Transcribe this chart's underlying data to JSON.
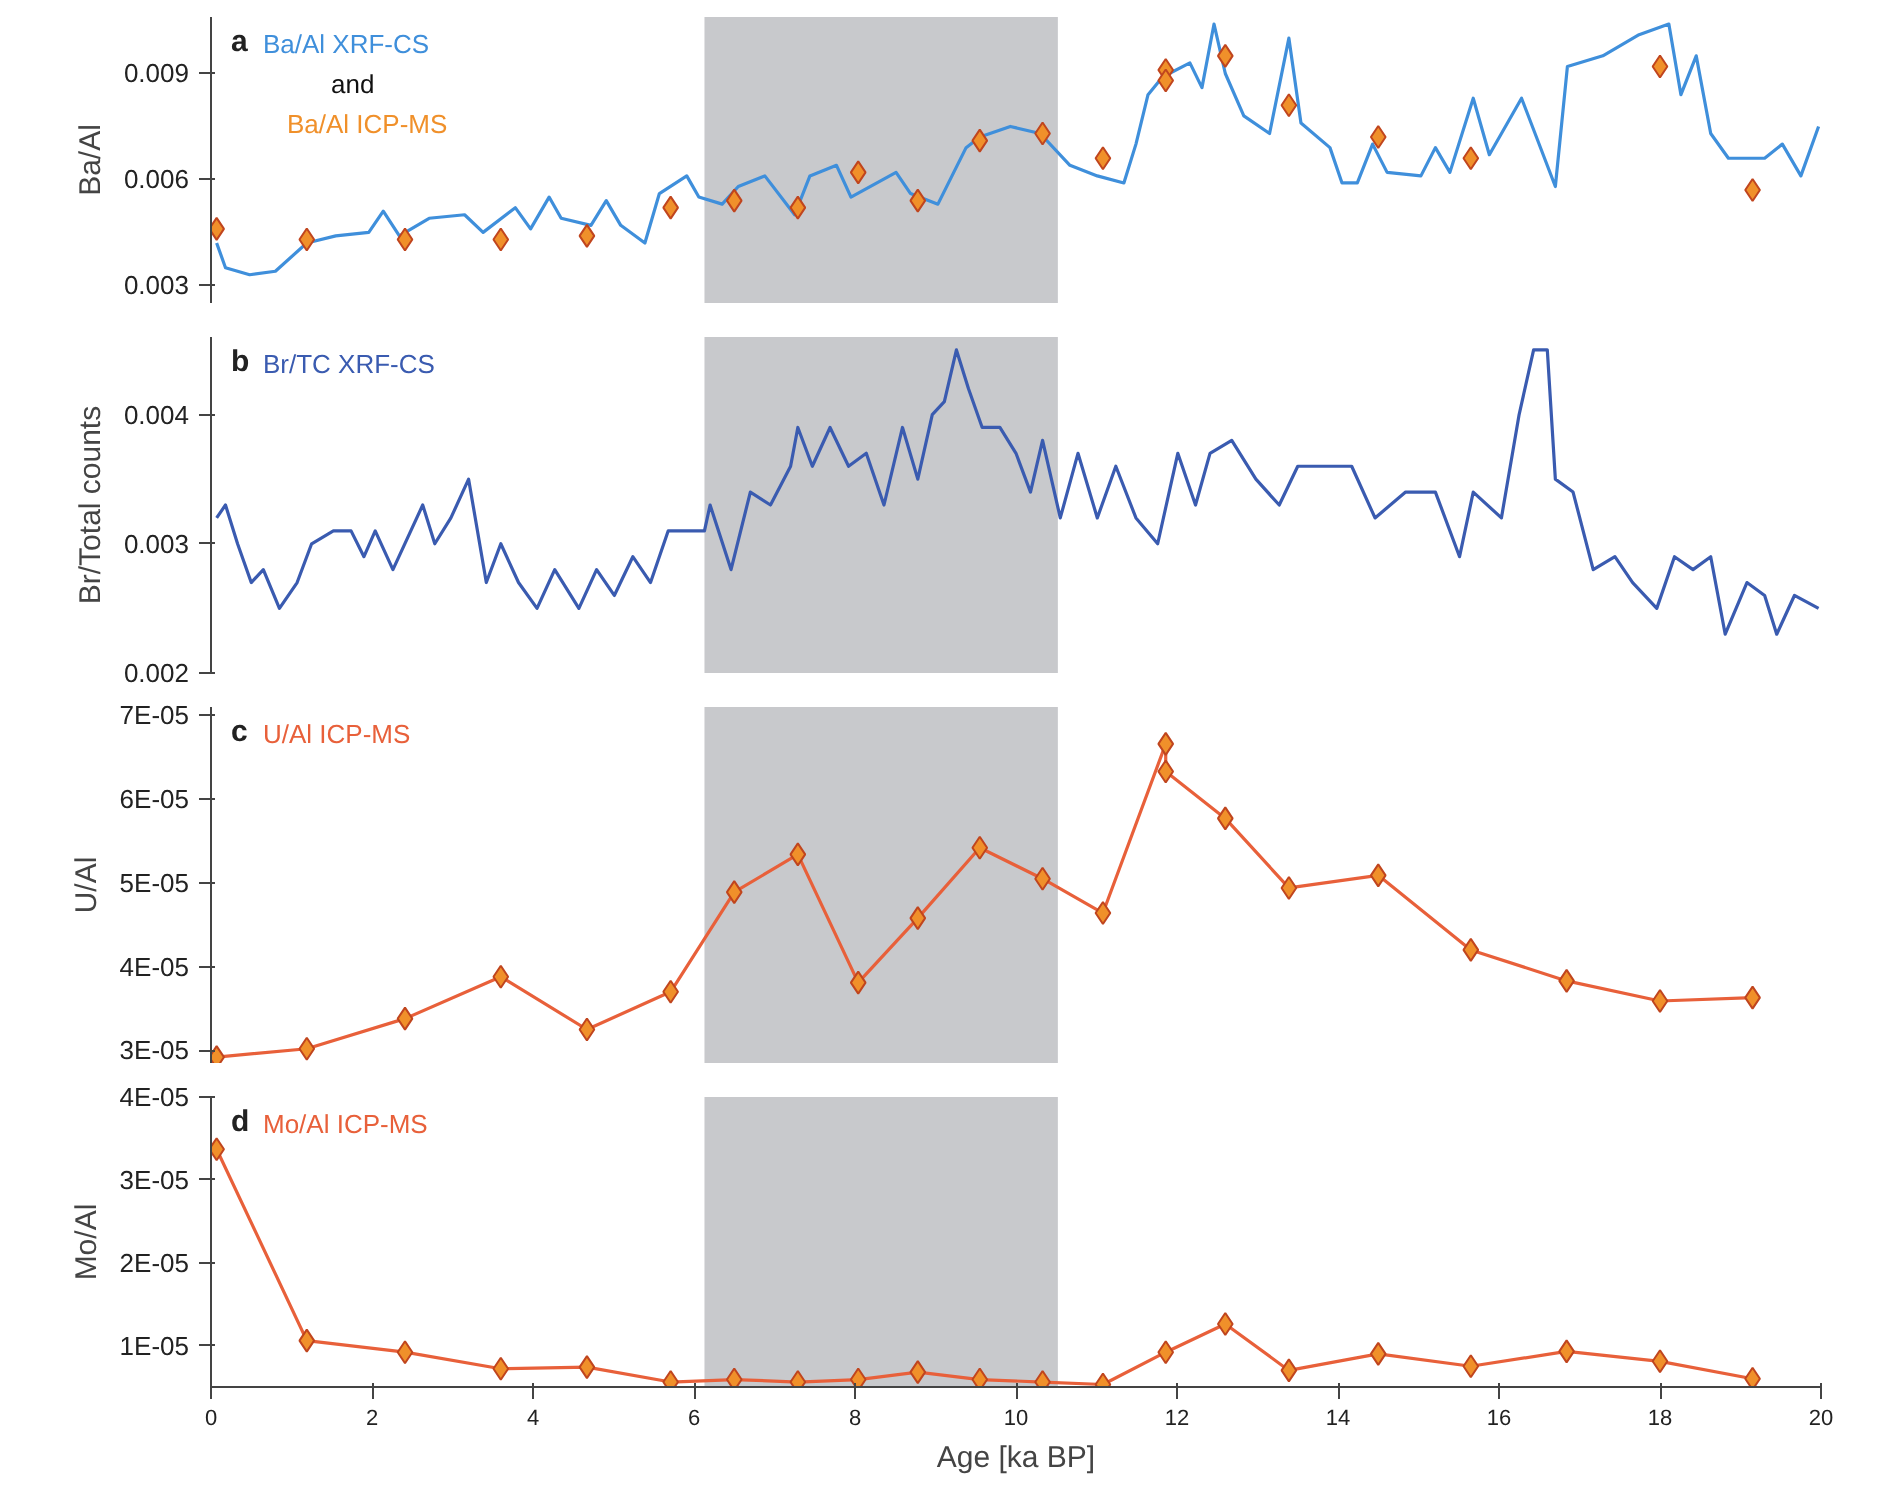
{
  "chart_data": [
    {
      "type": "line",
      "title": "a",
      "ylabel": "Ba/Al",
      "xlim": [
        0,
        20
      ],
      "ylim": [
        0.0025,
        0.0106
      ],
      "yticks": [
        0.003,
        0.006,
        0.009
      ],
      "tick_labels": "y",
      "annotations": [
        "and"
      ],
      "bands": [
        {
          "axis": "x",
          "from": 6.13,
          "to": 10.52,
          "color": "#c8c9cc"
        }
      ],
      "series": [
        {
          "name": "Ba/Al XRF-CS",
          "color": "#3f8fdb",
          "x": [
            0.07,
            0.18,
            0.48,
            0.8,
            1.19,
            1.55,
            1.96,
            2.14,
            2.34,
            2.71,
            3.15,
            3.38,
            3.78,
            3.97,
            4.2,
            4.35,
            4.72,
            4.91,
            5.09,
            5.39,
            5.57,
            5.91,
            6.06,
            6.35,
            6.55,
            6.88,
            7.25,
            7.44,
            7.77,
            7.95,
            8.51,
            8.69,
            9.03,
            9.38,
            9.55,
            9.93,
            10.3,
            10.67,
            11.01,
            11.34,
            11.49,
            11.64,
            11.82,
            12.16,
            12.31,
            12.46,
            12.6,
            12.83,
            13.15,
            13.39,
            13.54,
            13.9,
            14.05,
            14.24,
            14.43,
            14.61,
            15.03,
            15.21,
            15.39,
            15.68,
            15.88,
            16.28,
            16.7,
            16.85,
            17.29,
            17.74,
            18.11,
            18.26,
            18.45,
            18.63,
            18.85,
            19.3,
            19.52,
            19.75,
            19.97
          ],
          "values": [
            0.0042,
            0.0035,
            0.0033,
            0.0034,
            0.0042,
            0.0044,
            0.0045,
            0.0051,
            0.0044,
            0.0049,
            0.005,
            0.0045,
            0.0052,
            0.0046,
            0.0055,
            0.0049,
            0.0047,
            0.0054,
            0.0047,
            0.0042,
            0.0056,
            0.0061,
            0.0055,
            0.0053,
            0.0058,
            0.0061,
            0.005,
            0.0061,
            0.0064,
            0.0055,
            0.0062,
            0.0056,
            0.0053,
            0.0069,
            0.0072,
            0.0075,
            0.0073,
            0.0064,
            0.0061,
            0.0059,
            0.007,
            0.0084,
            0.0089,
            0.0093,
            0.0086,
            0.0104,
            0.009,
            0.0078,
            0.0073,
            0.01,
            0.0076,
            0.0069,
            0.0059,
            0.0059,
            0.007,
            0.0062,
            0.0061,
            0.0069,
            0.0062,
            0.0083,
            0.0067,
            0.0083,
            0.0058,
            0.0092,
            0.0095,
            0.0101,
            0.0104,
            0.0084,
            0.0095,
            0.0073,
            0.0066,
            0.0066,
            0.007,
            0.0061,
            0.0075
          ]
        },
        {
          "name": "Ba/Al ICP-MS",
          "type": "scatter",
          "marker": "diamond",
          "color": "#f0902a",
          "x": [
            0.07,
            1.19,
            2.41,
            3.6,
            4.67,
            5.71,
            6.5,
            7.29,
            8.04,
            8.78,
            9.55,
            10.33,
            11.08,
            11.86,
            11.86,
            12.6,
            13.39,
            14.5,
            15.65,
            18.0,
            19.15
          ],
          "values": [
            0.0046,
            0.0043,
            0.0043,
            0.0043,
            0.0044,
            0.0052,
            0.0054,
            0.0052,
            0.0062,
            0.0054,
            0.0071,
            0.0073,
            0.0066,
            0.0091,
            0.0088,
            0.0095,
            0.0081,
            0.0072,
            0.0066,
            0.0092,
            0.0057
          ]
        }
      ]
    },
    {
      "type": "line",
      "title": "b",
      "ylabel": "Br/Total counts",
      "xlim": [
        0,
        20
      ],
      "ylim": [
        0.002,
        0.0046
      ],
      "yticks": [
        0.002,
        0.003,
        0.004
      ],
      "tick_labels": "y",
      "bands": [
        {
          "axis": "x",
          "from": 6.13,
          "to": 10.52,
          "color": "#c8c9cc"
        }
      ],
      "series": [
        {
          "name": "Br/TC XRF-CS",
          "color": "#3a5bb0",
          "x": [
            0.07,
            0.18,
            0.33,
            0.5,
            0.65,
            0.85,
            1.07,
            1.25,
            1.52,
            1.74,
            1.9,
            2.04,
            2.26,
            2.63,
            2.78,
            2.98,
            3.2,
            3.42,
            3.6,
            3.82,
            4.05,
            4.27,
            4.57,
            4.79,
            5.01,
            5.24,
            5.46,
            5.68,
            6.13,
            6.2,
            6.46,
            6.7,
            6.95,
            7.2,
            7.29,
            7.47,
            7.69,
            7.92,
            8.14,
            8.36,
            8.59,
            8.78,
            8.96,
            9.11,
            9.26,
            9.41,
            9.58,
            9.8,
            10.0,
            10.18,
            10.33,
            10.55,
            10.77,
            11.01,
            11.24,
            11.49,
            11.76,
            12.01,
            12.23,
            12.41,
            12.68,
            12.98,
            13.27,
            13.5,
            13.87,
            14.17,
            14.46,
            14.84,
            15.21,
            15.51,
            15.68,
            16.03,
            16.25,
            16.43,
            16.6,
            16.7,
            16.92,
            17.17,
            17.44,
            17.66,
            17.96,
            18.18,
            18.41,
            18.63,
            18.81,
            19.08,
            19.3,
            19.45,
            19.67,
            19.97
          ],
          "values": [
            0.0032,
            0.0033,
            0.003,
            0.0027,
            0.0028,
            0.0025,
            0.0027,
            0.003,
            0.0031,
            0.0031,
            0.0029,
            0.0031,
            0.0028,
            0.0033,
            0.003,
            0.0032,
            0.0035,
            0.0027,
            0.003,
            0.0027,
            0.0025,
            0.0028,
            0.0025,
            0.0028,
            0.0026,
            0.0029,
            0.0027,
            0.0031,
            0.0031,
            0.0033,
            0.0028,
            0.0034,
            0.0033,
            0.0036,
            0.0039,
            0.0036,
            0.0039,
            0.0036,
            0.0037,
            0.0033,
            0.0039,
            0.0035,
            0.004,
            0.0041,
            0.0045,
            0.0042,
            0.0039,
            0.0039,
            0.0037,
            0.0034,
            0.0038,
            0.0032,
            0.0037,
            0.0032,
            0.0036,
            0.0032,
            0.003,
            0.0037,
            0.0033,
            0.0037,
            0.0038,
            0.0035,
            0.0033,
            0.0036,
            0.0036,
            0.0036,
            0.0032,
            0.0034,
            0.0034,
            0.0029,
            0.0034,
            0.0032,
            0.004,
            0.0045,
            0.0045,
            0.0035,
            0.0034,
            0.0028,
            0.0029,
            0.0027,
            0.0025,
            0.0029,
            0.0028,
            0.0029,
            0.0023,
            0.0027,
            0.0026,
            0.0023,
            0.0026,
            0.0025
          ]
        }
      ]
    },
    {
      "type": "line",
      "title": "c",
      "ylabel": "U/Al",
      "xlim": [
        0,
        20
      ],
      "ylim": [
        2.85e-05,
        7.1e-05
      ],
      "marker": "diamond",
      "tick_labels": "y",
      "yticks": [
        {
          "value": 3e-05,
          "label": "3E-05"
        },
        {
          "value": 4e-05,
          "label": "4E-05"
        },
        {
          "value": 5e-05,
          "label": "5E-05"
        },
        {
          "value": 6e-05,
          "label": "6E-05"
        },
        {
          "value": 7e-05,
          "label": "7E-05"
        }
      ],
      "bands": [
        {
          "axis": "x",
          "from": 6.13,
          "to": 10.52,
          "color": "#c8c9cc"
        }
      ],
      "series": [
        {
          "name": "U/Al ICP-MS",
          "color": "#e8603a",
          "x": [
            0.07,
            1.19,
            2.41,
            3.6,
            4.67,
            5.71,
            6.5,
            7.29,
            8.04,
            8.78,
            9.55,
            10.33,
            11.08,
            11.86,
            11.86,
            12.6,
            13.39,
            14.5,
            15.65,
            16.84,
            18.0,
            19.15
          ],
          "values": [
            2.92e-05,
            3.02e-05,
            3.38e-05,
            3.88e-05,
            3.25e-05,
            3.7e-05,
            4.89e-05,
            5.34e-05,
            3.81e-05,
            4.58e-05,
            5.42e-05,
            5.05e-05,
            4.64e-05,
            6.66e-05,
            6.33e-05,
            5.77e-05,
            4.94e-05,
            5.09e-05,
            4.2e-05,
            3.83e-05,
            3.59e-05,
            3.63e-05
          ]
        }
      ]
    },
    {
      "type": "line",
      "title": "d",
      "ylabel": "Mo/Al",
      "xlabel": "Age [ka BP]",
      "xlim": [
        0,
        20
      ],
      "xticks": [
        0,
        2,
        4,
        6,
        8,
        10,
        12,
        14,
        16,
        18,
        20
      ],
      "ylim": [
        5e-06,
        4e-05
      ],
      "marker": "diamond",
      "yticks": [
        {
          "value": 1e-05,
          "label": "1E-05"
        },
        {
          "value": 2e-05,
          "label": "2E-05"
        },
        {
          "value": 3e-05,
          "label": "3E-05"
        },
        {
          "value": 4e-05,
          "label": "4E-05"
        }
      ],
      "bands": [
        {
          "axis": "x",
          "from": 6.13,
          "to": 10.52,
          "color": "#c8c9cc"
        }
      ],
      "series": [
        {
          "name": "Mo/Al ICP-MS",
          "color": "#e8603a",
          "x": [
            0.07,
            1.19,
            2.41,
            3.6,
            4.67,
            5.71,
            6.5,
            7.29,
            8.04,
            8.78,
            9.55,
            10.33,
            11.08,
            11.86,
            12.6,
            13.39,
            14.5,
            15.65,
            16.84,
            18.0,
            19.15
          ],
          "values": [
            3.37e-05,
            1.06e-05,
            9.2e-06,
            7.2e-06,
            7.4e-06,
            5.6e-06,
            5.9e-06,
            5.6e-06,
            5.9e-06,
            6.8e-06,
            5.9e-06,
            5.6e-06,
            5.3e-06,
            9.2e-06,
            1.26e-05,
            7e-06,
            9e-06,
            7.5e-06,
            9.3e-06,
            8.1e-06,
            6e-06
          ]
        }
      ]
    }
  ]
}
